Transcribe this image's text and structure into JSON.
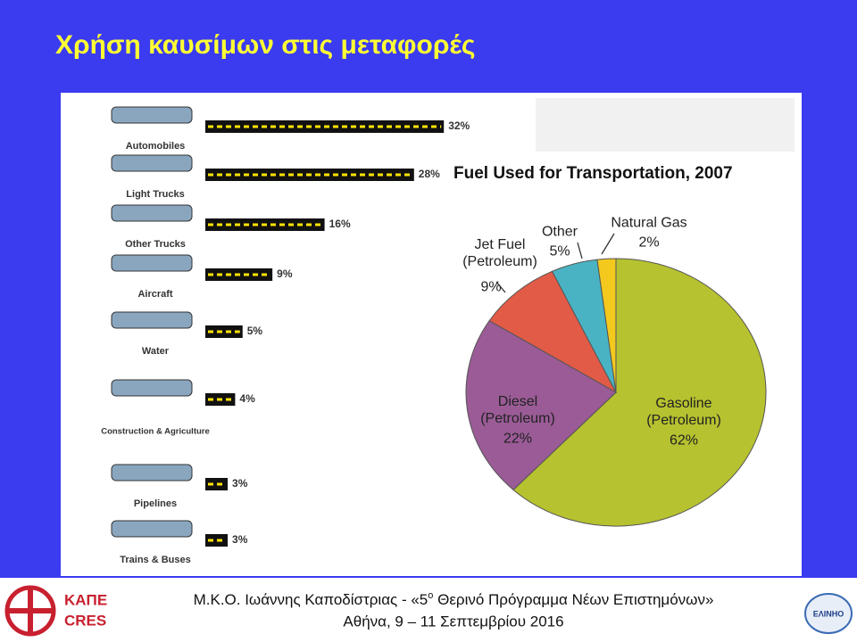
{
  "title": "Χρήση καυσίμων στις μεταφορές",
  "chart_data": [
    {
      "type": "bar",
      "categories": [
        "Automobiles",
        "Light Trucks",
        "Other Trucks",
        "Aircraft",
        "Water",
        "Construction & Agriculture",
        "Pipelines",
        "Trains & Buses"
      ],
      "values": [
        32,
        28,
        16,
        9,
        5,
        4,
        3,
        3
      ],
      "value_labels": [
        "32%",
        "28%",
        "16%",
        "9%",
        "5%",
        "4%",
        "3%",
        "3%"
      ],
      "color": "#111111"
    },
    {
      "type": "pie",
      "title": "Fuel Used for Transportation, 2007",
      "categories": [
        "Gasoline (Petroleum)",
        "Diesel (Petroleum)",
        "Jet Fuel (Petroleum)",
        "Other",
        "Natural Gas"
      ],
      "values": [
        62,
        22,
        9,
        5,
        2
      ],
      "value_labels": [
        "62%",
        "22%",
        "9%",
        "5%",
        "2%"
      ],
      "colors": [
        "#b6c22f",
        "#9a5b96",
        "#e25b47",
        "#49b3c3",
        "#f3c91d"
      ]
    }
  ],
  "footer": {
    "logo_top": "ΚΑΠΕ",
    "logo_bottom": "CRES",
    "line1_a": "Μ.Κ.Ο. Ιωάννης Καποδίστριας - «5",
    "line1_sup": "ο",
    "line1_b": " Θερινό Πρόγραμμα Νέων Επιστημόνων»",
    "line2": "Αθήνα, 9 – 11 Σεπτεμβρίου 2016",
    "badge": "ΕΛΙΝΗΟ"
  }
}
